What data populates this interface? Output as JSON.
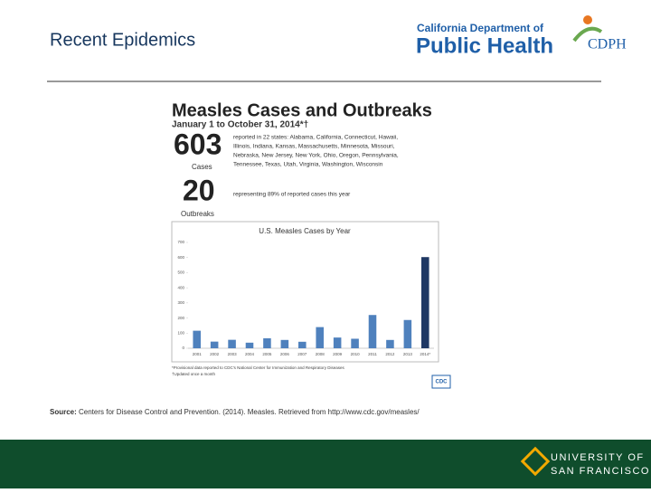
{
  "slide": {
    "title": "Recent Epidemics",
    "logo": {
      "line1": "California Department of",
      "line2": "Public Health",
      "abbr": "CDPH"
    },
    "infographic": {
      "heading": "Measles Cases and Outbreaks",
      "subheading": "January 1 to October 31, 2014*†",
      "cases_number": "603",
      "cases_label": "Cases",
      "cases_text": [
        "reported in 22 states: Alabama, California, Connecticut, Hawaii,",
        "Illinois, Indiana, Kansas, Massachusetts, Minnesota, Missouri,",
        "Nebraska, New Jersey, New York, Ohio, Oregon, Pennsylvania,",
        "Tennessee, Texas, Utah, Virginia, Washington, Wisconsin"
      ],
      "outbreaks_number": "20",
      "outbreaks_label": "Outbreaks",
      "outbreaks_text": "representing 89% of reported cases this year",
      "footnotes": [
        "*Provisional data reported to CDC's National Center for Immunization and Respiratory Diseases",
        "†Updated once a month"
      ],
      "cdc_logo": "CDC"
    },
    "source_label": "Source:",
    "source_text": "Centers for Disease Control and Prevention. (2014). Measles. Retrieved from http://www.cdc.gov/measles/",
    "footer": {
      "line1": "UNIVERSITY OF",
      "line2": "SAN FRANCISCO"
    }
  },
  "chart_data": {
    "type": "bar",
    "title": "U.S. Measles Cases by Year",
    "categories": [
      "2001",
      "2002",
      "2003",
      "2004",
      "2005",
      "2006",
      "2007",
      "2008",
      "2009",
      "2010",
      "2011",
      "2012",
      "2013",
      "2014*"
    ],
    "values": [
      116,
      44,
      56,
      37,
      66,
      55,
      43,
      140,
      71,
      63,
      220,
      55,
      187,
      603
    ],
    "colors": [
      "#4f81bd",
      "#4f81bd",
      "#4f81bd",
      "#4f81bd",
      "#4f81bd",
      "#4f81bd",
      "#4f81bd",
      "#4f81bd",
      "#4f81bd",
      "#4f81bd",
      "#4f81bd",
      "#4f81bd",
      "#4f81bd",
      "#1f3864"
    ],
    "ylim": [
      0,
      700
    ],
    "yticks": [
      0,
      100,
      200,
      300,
      400,
      500,
      600,
      700
    ],
    "grid": false
  }
}
